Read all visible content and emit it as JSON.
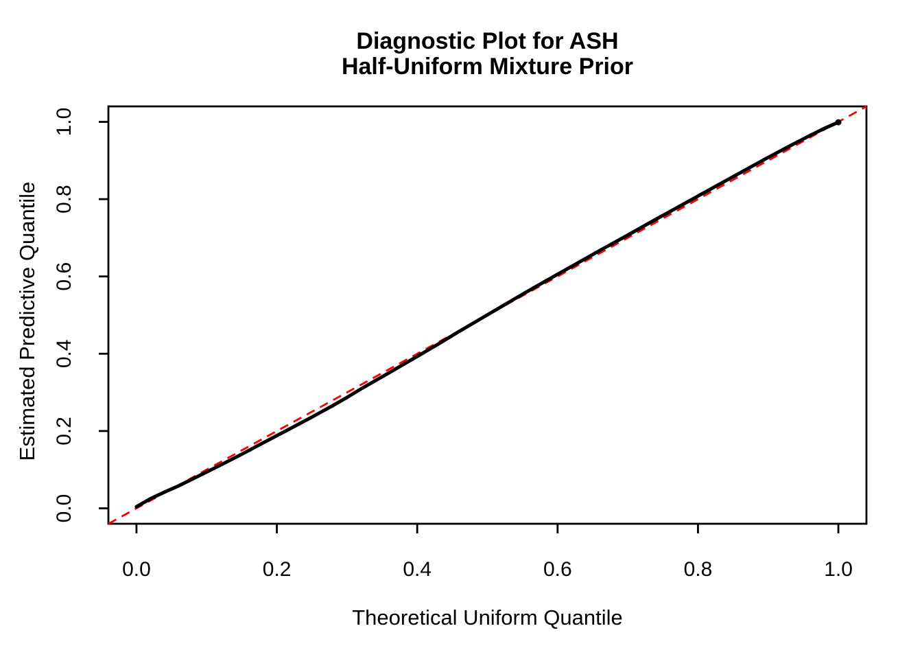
{
  "page": {
    "background": "#FFFFFF"
  },
  "chart_data": {
    "type": "scatter",
    "subtype": "qq-plot",
    "title_line1": "Diagnostic Plot for ASH",
    "title_line2": "Half-Uniform Mixture Prior",
    "xlabel": "Theoretical Uniform Quantile",
    "ylabel": "Estimated Predictive Quantile",
    "xlim": [
      -0.04,
      1.04
    ],
    "ylim": [
      -0.04,
      1.04
    ],
    "data_range": [
      0,
      1
    ],
    "grid": false,
    "legend": false,
    "x_ticks": {
      "values": [
        0,
        0.2,
        0.4,
        0.6,
        0.8,
        1.0
      ],
      "labels": [
        "0.0",
        "0.2",
        "0.4",
        "0.6",
        "0.8",
        "1.0"
      ]
    },
    "y_ticks": {
      "values": [
        0,
        0.2,
        0.4,
        0.6,
        0.8,
        1.0
      ],
      "labels": [
        "0.0",
        "0.2",
        "0.4",
        "0.6",
        "0.8",
        "1.0"
      ]
    },
    "colors": {
      "points": "#000000",
      "reference_line": "#FF0000",
      "axis": "#000000",
      "background": "#FFFFFF"
    },
    "reference_line": {
      "meaning": "y = x identity line",
      "style": "dashed",
      "color": "#FF0000",
      "x": [
        -0.04,
        1.04
      ],
      "y": [
        -0.04,
        1.04
      ]
    },
    "series": [
      {
        "name": "estimated predictive quantile vs theoretical uniform quantile",
        "marker": "filled-point",
        "color": "#000000",
        "points": [
          [
            0.0,
            0.004
          ],
          [
            0.02,
            0.025
          ],
          [
            0.04,
            0.042
          ],
          [
            0.06,
            0.058
          ],
          [
            0.08,
            0.076
          ],
          [
            0.1,
            0.094
          ],
          [
            0.12,
            0.112
          ],
          [
            0.15,
            0.14
          ],
          [
            0.18,
            0.169
          ],
          [
            0.2,
            0.188
          ],
          [
            0.22,
            0.207
          ],
          [
            0.25,
            0.236
          ],
          [
            0.28,
            0.266
          ],
          [
            0.3,
            0.287
          ],
          [
            0.32,
            0.309
          ],
          [
            0.34,
            0.33
          ],
          [
            0.36,
            0.351
          ],
          [
            0.38,
            0.372
          ],
          [
            0.4,
            0.393
          ],
          [
            0.43,
            0.425
          ],
          [
            0.46,
            0.458
          ],
          [
            0.49,
            0.49
          ],
          [
            0.52,
            0.522
          ],
          [
            0.55,
            0.554
          ],
          [
            0.58,
            0.585
          ],
          [
            0.62,
            0.626
          ],
          [
            0.66,
            0.667
          ],
          [
            0.7,
            0.707
          ],
          [
            0.74,
            0.748
          ],
          [
            0.78,
            0.788
          ],
          [
            0.82,
            0.828
          ],
          [
            0.86,
            0.868
          ],
          [
            0.9,
            0.908
          ],
          [
            0.93,
            0.937
          ],
          [
            0.96,
            0.965
          ],
          [
            0.98,
            0.983
          ],
          [
            1.0,
            0.999
          ]
        ]
      }
    ]
  }
}
